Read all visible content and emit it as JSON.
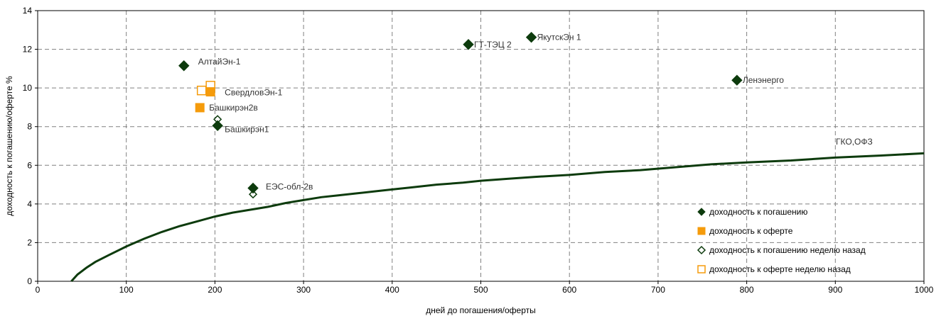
{
  "chart_data": {
    "type": "scatter",
    "xlabel": "дней до погашения/оферты",
    "ylabel": "доходность к погашению/оферте %",
    "xlim": [
      0,
      1000
    ],
    "ylim": [
      0,
      14
    ],
    "xticks": [
      0,
      100,
      200,
      300,
      400,
      500,
      600,
      700,
      800,
      900,
      1000
    ],
    "yticks": [
      0,
      2,
      4,
      6,
      8,
      10,
      12,
      14
    ],
    "grid": true,
    "legend_position": "bottom-right",
    "colors": {
      "maturity": "#0d3b0d",
      "offer": "#f59b0b",
      "curve": "#0d3b0d",
      "grid": "#808080"
    },
    "series": [
      {
        "name": "доходность к погашению",
        "marker": "filled-diamond",
        "points": [
          {
            "x": 165,
            "y": 11.15,
            "label": "АлтайЭн-1"
          },
          {
            "x": 203,
            "y": 8.05,
            "label": "Башкирэн1"
          },
          {
            "x": 243,
            "y": 4.82,
            "label": "ЕЭС-обл-2в"
          },
          {
            "x": 486,
            "y": 12.25,
            "label": "ГТ-ТЭЦ 2"
          },
          {
            "x": 557,
            "y": 12.62,
            "label": "ЯкутскЭн 1"
          },
          {
            "x": 789,
            "y": 10.4,
            "label": "Ленэнерго"
          }
        ]
      },
      {
        "name": "доходность к оферте",
        "marker": "filled-square",
        "points": [
          {
            "x": 195,
            "y": 9.8,
            "label": "СвердловЭн-1"
          },
          {
            "x": 183,
            "y": 8.98,
            "label": "Башкирэн2в"
          }
        ]
      },
      {
        "name": "доходность к погашению неделю назад",
        "marker": "hollow-diamond",
        "points": [
          {
            "x": 203,
            "y": 8.38,
            "label": ""
          },
          {
            "x": 243,
            "y": 4.5,
            "label": ""
          }
        ]
      },
      {
        "name": "доходность к оферте неделю назад",
        "marker": "hollow-square",
        "points": [
          {
            "x": 185,
            "y": 9.87,
            "label": ""
          },
          {
            "x": 195,
            "y": 10.12,
            "label": ""
          }
        ]
      }
    ],
    "curve": {
      "label": "ГКО,ОФЗ",
      "points": [
        [
          38,
          0
        ],
        [
          45,
          0.35
        ],
        [
          55,
          0.7
        ],
        [
          65,
          1.0
        ],
        [
          80,
          1.35
        ],
        [
          100,
          1.8
        ],
        [
          120,
          2.2
        ],
        [
          140,
          2.55
        ],
        [
          160,
          2.85
        ],
        [
          180,
          3.1
        ],
        [
          200,
          3.35
        ],
        [
          220,
          3.55
        ],
        [
          240,
          3.7
        ],
        [
          260,
          3.85
        ],
        [
          280,
          4.05
        ],
        [
          300,
          4.2
        ],
        [
          320,
          4.35
        ],
        [
          340,
          4.45
        ],
        [
          360,
          4.55
        ],
        [
          380,
          4.65
        ],
        [
          400,
          4.75
        ],
        [
          420,
          4.85
        ],
        [
          450,
          5.0
        ],
        [
          480,
          5.1
        ],
        [
          500,
          5.2
        ],
        [
          530,
          5.3
        ],
        [
          560,
          5.4
        ],
        [
          600,
          5.5
        ],
        [
          640,
          5.65
        ],
        [
          680,
          5.75
        ],
        [
          720,
          5.9
        ],
        [
          760,
          6.05
        ],
        [
          800,
          6.15
        ],
        [
          850,
          6.25
        ],
        [
          900,
          6.4
        ],
        [
          950,
          6.5
        ],
        [
          1000,
          6.62
        ]
      ]
    }
  }
}
